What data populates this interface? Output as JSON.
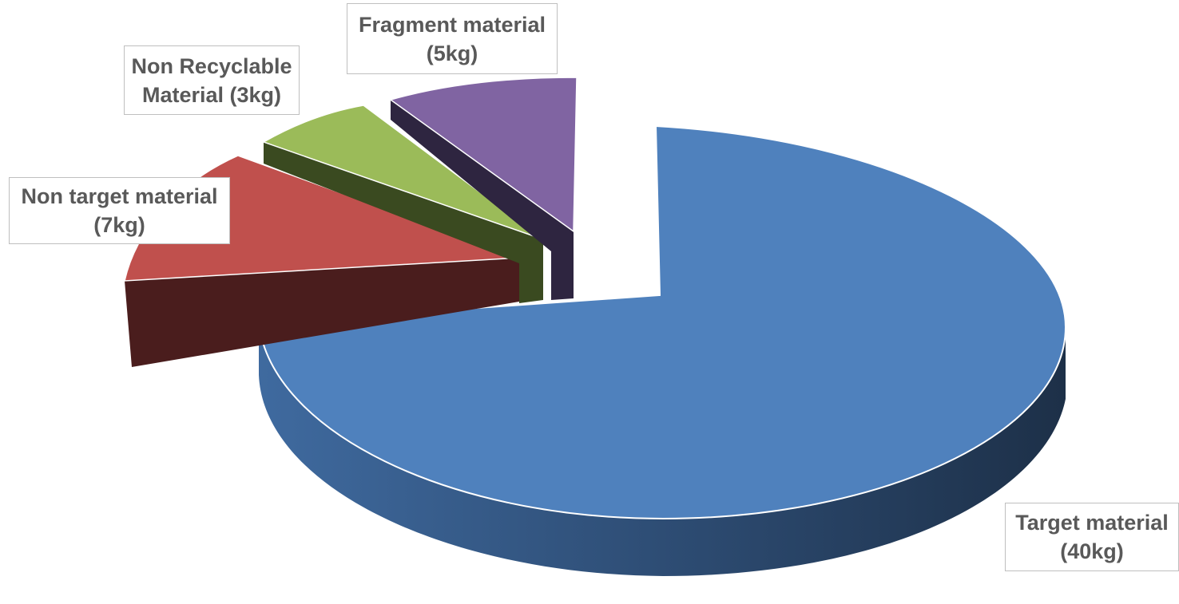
{
  "chart_data": {
    "type": "pie",
    "title": "",
    "unit": "kg",
    "slices": [
      {
        "label": "Target material",
        "value": 40,
        "value_text": "(40kg)",
        "color": "#4F81BD"
      },
      {
        "label": "Non target material",
        "value": 7,
        "value_text": "(7kg)",
        "color": "#C0504D"
      },
      {
        "label": "Non Recyclable Material",
        "value": 3,
        "value_text": "(3kg)",
        "color": "#9BBB59"
      },
      {
        "label": "Fragment material",
        "value": 5,
        "value_text": "(5kg)",
        "color": "#8064A2"
      }
    ],
    "labels": {
      "target": [
        "Target material",
        "(40kg)"
      ],
      "nontarget": [
        "Non target material",
        "(7kg)"
      ],
      "nonrecyclable": [
        "Non Recyclable",
        "Material (3kg)"
      ],
      "fragment": [
        "Fragment material",
        "(5kg)"
      ]
    },
    "style": "3d-exploded-pie",
    "legend": "none"
  }
}
